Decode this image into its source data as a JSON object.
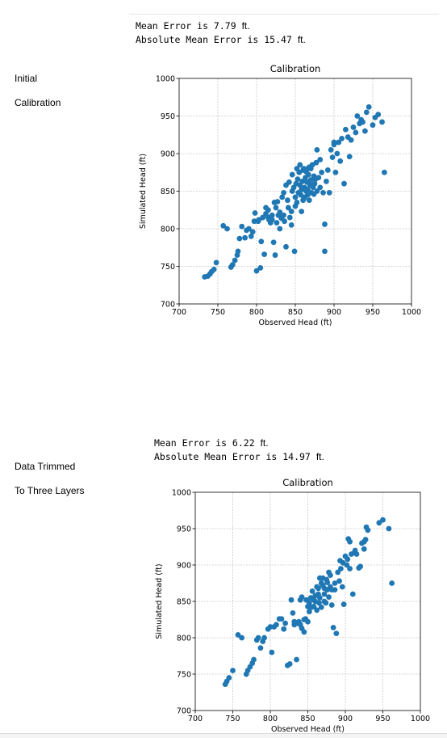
{
  "sections": [
    {
      "stats": {
        "mean_label": "Mean Error is 7.79",
        "mean_unit": "ft.",
        "abs_label": "Absolute Mean Error is 15.47",
        "abs_unit": "ft."
      },
      "side_label_line1": "Initial",
      "side_label_line2": "Calibration"
    },
    {
      "stats": {
        "mean_label": "Mean Error is 6.22",
        "mean_unit": "ft.",
        "abs_label": "Absolute Mean Error is 14.97",
        "abs_unit": "ft."
      },
      "side_label_line1": "Data Trimmed",
      "side_label_line2": "To Three Layers"
    }
  ],
  "chart_data": [
    {
      "type": "scatter",
      "title": "Calibration",
      "xlabel": "Observed Head (ft)",
      "ylabel": "Simulated Head (ft)",
      "xlim": [
        700,
        1000
      ],
      "ylim": [
        700,
        1000
      ],
      "xticks": [
        700,
        750,
        800,
        850,
        900,
        950,
        1000
      ],
      "yticks": [
        700,
        750,
        800,
        850,
        900,
        950,
        1000
      ],
      "grid": true,
      "marker_color": "#1f77b4",
      "points": [
        [
          733,
          736
        ],
        [
          737,
          737
        ],
        [
          740,
          740
        ],
        [
          742,
          743
        ],
        [
          745,
          746
        ],
        [
          748,
          755
        ],
        [
          757,
          804
        ],
        [
          762,
          800
        ],
        [
          767,
          749
        ],
        [
          769,
          752
        ],
        [
          772,
          758
        ],
        [
          775,
          765
        ],
        [
          776,
          770
        ],
        [
          778,
          787
        ],
        [
          781,
          803
        ],
        [
          785,
          788
        ],
        [
          787,
          798
        ],
        [
          790,
          800
        ],
        [
          793,
          790
        ],
        [
          795,
          796
        ],
        [
          797,
          810
        ],
        [
          798,
          821
        ],
        [
          800,
          744
        ],
        [
          802,
          810
        ],
        [
          803,
          812
        ],
        [
          805,
          748
        ],
        [
          806,
          783
        ],
        [
          808,
          815
        ],
        [
          810,
          766
        ],
        [
          812,
          820
        ],
        [
          815,
          815
        ],
        [
          818,
          808
        ],
        [
          820,
          812
        ],
        [
          822,
          782
        ],
        [
          824,
          765
        ],
        [
          825,
          828
        ],
        [
          827,
          836
        ],
        [
          828,
          818
        ],
        [
          830,
          800
        ],
        [
          832,
          814
        ],
        [
          833,
          842
        ],
        [
          835,
          848
        ],
        [
          836,
          810
        ],
        [
          838,
          776
        ],
        [
          840,
          838
        ],
        [
          841,
          828
        ],
        [
          843,
          815
        ],
        [
          845,
          805
        ],
        [
          846,
          850
        ],
        [
          848,
          855
        ],
        [
          849,
          770
        ],
        [
          850,
          842
        ],
        [
          851,
          860
        ],
        [
          852,
          835
        ],
        [
          853,
          866
        ],
        [
          854,
          848
        ],
        [
          855,
          875
        ],
        [
          856,
          858
        ],
        [
          857,
          845
        ],
        [
          858,
          852
        ],
        [
          859,
          863
        ],
        [
          860,
          878
        ],
        [
          861,
          840
        ],
        [
          862,
          855
        ],
        [
          863,
          868
        ],
        [
          864,
          850
        ],
        [
          865,
          862
        ],
        [
          866,
          845
        ],
        [
          867,
          872
        ],
        [
          868,
          882
        ],
        [
          869,
          858
        ],
        [
          870,
          865
        ],
        [
          871,
          848
        ],
        [
          872,
          885
        ],
        [
          873,
          855
        ],
        [
          874,
          870
        ],
        [
          875,
          860
        ],
        [
          876,
          866
        ],
        [
          877,
          888
        ],
        [
          878,
          850
        ],
        [
          880,
          868
        ],
        [
          882,
          892
        ],
        [
          884,
          875
        ],
        [
          886,
          848
        ],
        [
          888,
          806
        ],
        [
          890,
          863
        ],
        [
          892,
          878
        ],
        [
          894,
          848
        ],
        [
          896,
          905
        ],
        [
          898,
          895
        ],
        [
          900,
          912
        ],
        [
          902,
          875
        ],
        [
          904,
          900
        ],
        [
          906,
          915
        ],
        [
          908,
          890
        ],
        [
          910,
          920
        ],
        [
          913,
          860
        ],
        [
          915,
          932
        ],
        [
          918,
          922
        ],
        [
          920,
          896
        ],
        [
          922,
          918
        ],
        [
          925,
          935
        ],
        [
          928,
          928
        ],
        [
          930,
          950
        ],
        [
          933,
          940
        ],
        [
          935,
          945
        ],
        [
          937,
          942
        ],
        [
          940,
          930
        ],
        [
          942,
          955
        ],
        [
          945,
          962
        ],
        [
          950,
          938
        ],
        [
          953,
          948
        ],
        [
          957,
          952
        ],
        [
          962,
          942
        ],
        [
          965,
          875
        ],
        [
          868,
          838
        ],
        [
          858,
          823
        ],
        [
          845,
          823
        ],
        [
          870,
          880
        ],
        [
          864,
          876
        ],
        [
          878,
          905
        ],
        [
          900,
          915
        ],
        [
          872,
          858
        ],
        [
          866,
          852
        ],
        [
          862,
          842
        ],
        [
          860,
          838
        ],
        [
          874,
          846
        ],
        [
          882,
          855
        ],
        [
          888,
          770
        ],
        [
          850,
          830
        ],
        [
          835,
          818
        ],
        [
          830,
          822
        ],
        [
          826,
          808
        ],
        [
          820,
          818
        ],
        [
          815,
          825
        ],
        [
          812,
          828
        ],
        [
          816,
          812
        ],
        [
          823,
          835
        ],
        [
          838,
          858
        ],
        [
          842,
          862
        ],
        [
          846,
          872
        ],
        [
          852,
          880
        ],
        [
          856,
          885
        ],
        [
          861,
          880
        ],
        [
          866,
          880
        ]
      ]
    },
    {
      "type": "scatter",
      "title": "Calibration",
      "xlabel": "Observed Head (ft)",
      "ylabel": "Simulated Head (ft)",
      "xlim": [
        700,
        1000
      ],
      "ylim": [
        700,
        1000
      ],
      "xticks": [
        700,
        750,
        800,
        850,
        900,
        950,
        1000
      ],
      "yticks": [
        700,
        750,
        800,
        850,
        900,
        950,
        1000
      ],
      "grid": true,
      "marker_color": "#1f77b4",
      "points": [
        [
          740,
          736
        ],
        [
          742,
          740
        ],
        [
          745,
          745
        ],
        [
          750,
          755
        ],
        [
          757,
          804
        ],
        [
          762,
          800
        ],
        [
          768,
          750
        ],
        [
          770,
          755
        ],
        [
          773,
          760
        ],
        [
          776,
          765
        ],
        [
          778,
          770
        ],
        [
          782,
          797
        ],
        [
          784,
          800
        ],
        [
          787,
          786
        ],
        [
          790,
          795
        ],
        [
          792,
          800
        ],
        [
          797,
          812
        ],
        [
          800,
          815
        ],
        [
          802,
          780
        ],
        [
          805,
          815
        ],
        [
          808,
          818
        ],
        [
          812,
          826
        ],
        [
          815,
          826
        ],
        [
          818,
          812
        ],
        [
          820,
          820
        ],
        [
          823,
          762
        ],
        [
          826,
          764
        ],
        [
          828,
          852
        ],
        [
          830,
          834
        ],
        [
          832,
          818
        ],
        [
          835,
          770
        ],
        [
          838,
          822
        ],
        [
          840,
          852
        ],
        [
          842,
          813
        ],
        [
          845,
          808
        ],
        [
          847,
          826
        ],
        [
          850,
          843
        ],
        [
          852,
          836
        ],
        [
          854,
          855
        ],
        [
          856,
          864
        ],
        [
          858,
          843
        ],
        [
          860,
          850
        ],
        [
          862,
          870
        ],
        [
          864,
          860
        ],
        [
          866,
          855
        ],
        [
          868,
          875
        ],
        [
          870,
          882
        ],
        [
          872,
          860
        ],
        [
          874,
          848
        ],
        [
          876,
          866
        ],
        [
          878,
          890
        ],
        [
          880,
          870
        ],
        [
          882,
          845
        ],
        [
          884,
          814
        ],
        [
          886,
          866
        ],
        [
          888,
          806
        ],
        [
          890,
          890
        ],
        [
          892,
          878
        ],
        [
          894,
          895
        ],
        [
          896,
          870
        ],
        [
          898,
          846
        ],
        [
          900,
          912
        ],
        [
          902,
          900
        ],
        [
          904,
          936
        ],
        [
          906,
          895
        ],
        [
          908,
          915
        ],
        [
          910,
          860
        ],
        [
          913,
          920
        ],
        [
          915,
          915
        ],
        [
          918,
          896
        ],
        [
          920,
          898
        ],
        [
          922,
          930
        ],
        [
          925,
          922
        ],
        [
          927,
          935
        ],
        [
          928,
          952
        ],
        [
          930,
          948
        ],
        [
          945,
          958
        ],
        [
          950,
          962
        ],
        [
          958,
          950
        ],
        [
          962,
          875
        ],
        [
          865,
          848
        ],
        [
          860,
          858
        ],
        [
          870,
          872
        ],
        [
          875,
          880
        ],
        [
          880,
          886
        ],
        [
          866,
          882
        ],
        [
          855,
          842
        ],
        [
          850,
          822
        ],
        [
          845,
          825
        ],
        [
          840,
          818
        ],
        [
          836,
          820
        ],
        [
          832,
          822
        ],
        [
          872,
          850
        ],
        [
          868,
          842
        ],
        [
          862,
          838
        ],
        [
          858,
          852
        ],
        [
          878,
          856
        ],
        [
          882,
          866
        ],
        [
          886,
          875
        ],
        [
          893,
          906
        ],
        [
          897,
          903
        ],
        [
          903,
          908
        ],
        [
          912,
          917
        ],
        [
          906,
          932
        ],
        [
          925,
          932
        ],
        [
          876,
          876
        ],
        [
          872,
          868
        ],
        [
          864,
          868
        ],
        [
          852,
          848
        ],
        [
          848,
          852
        ],
        [
          842,
          856
        ]
      ]
    }
  ]
}
